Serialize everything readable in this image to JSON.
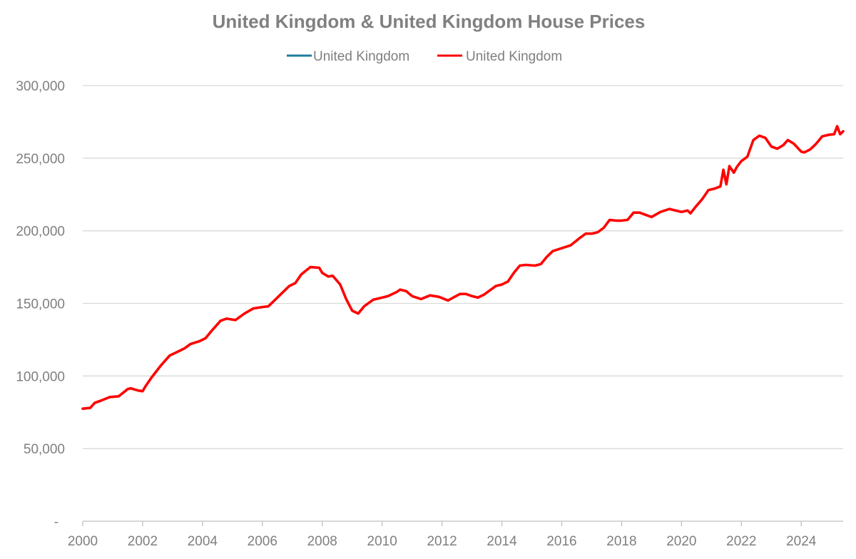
{
  "chart_data": {
    "type": "line",
    "title": "United Kingdom & United Kingdom House Prices",
    "xlabel": "",
    "ylabel": "",
    "xlim": [
      2000,
      2025.4
    ],
    "ylim": [
      0,
      300000
    ],
    "y_ticks": [
      0,
      50000,
      100000,
      150000,
      200000,
      250000,
      300000
    ],
    "y_tick_labels": [
      "-",
      "50,000",
      "100,000",
      "150,000",
      "200,000",
      "250,000",
      "300,000"
    ],
    "x_ticks": [
      2000,
      2002,
      2004,
      2006,
      2008,
      2010,
      2012,
      2014,
      2016,
      2018,
      2020,
      2022,
      2024
    ],
    "x_tick_labels": [
      "2000",
      "2002",
      "2004",
      "2006",
      "2008",
      "2010",
      "2012",
      "2014",
      "2016",
      "2018",
      "2020",
      "2022",
      "2024"
    ],
    "grid": "horizontal",
    "legend": "top-center",
    "series": [
      {
        "name": "United Kingdom",
        "color": "#1f7b9e",
        "x": [],
        "values": []
      },
      {
        "name": "United Kingdom",
        "color": "#ff0000",
        "x": [
          2000.0,
          2000.25,
          2000.4,
          2000.6,
          2000.9,
          2001.2,
          2001.5,
          2001.6,
          2001.85,
          2002.0,
          2002.1,
          2002.3,
          2002.6,
          2002.9,
          2003.1,
          2003.4,
          2003.6,
          2003.9,
          2004.1,
          2004.3,
          2004.6,
          2004.8,
          2005.1,
          2005.4,
          2005.7,
          2006.0,
          2006.2,
          2006.5,
          2006.7,
          2006.9,
          2007.1,
          2007.3,
          2007.6,
          2007.9,
          2008.0,
          2008.2,
          2008.35,
          2008.6,
          2008.8,
          2009.0,
          2009.2,
          2009.4,
          2009.7,
          2010.0,
          2010.2,
          2010.5,
          2010.6,
          2010.8,
          2011.0,
          2011.3,
          2011.6,
          2011.9,
          2012.2,
          2012.6,
          2012.8,
          2013.0,
          2013.2,
          2013.4,
          2013.6,
          2013.8,
          2014.0,
          2014.2,
          2014.4,
          2014.6,
          2014.8,
          2015.1,
          2015.3,
          2015.5,
          2015.7,
          2016.0,
          2016.3,
          2016.6,
          2016.8,
          2017.0,
          2017.2,
          2017.4,
          2017.6,
          2017.8,
          2018.0,
          2018.2,
          2018.4,
          2018.6,
          2018.8,
          2019.0,
          2019.3,
          2019.6,
          2019.8,
          2020.0,
          2020.2,
          2020.3,
          2020.45,
          2020.7,
          2020.9,
          2021.1,
          2021.3,
          2021.4,
          2021.5,
          2021.6,
          2021.75,
          2021.85,
          2022.0,
          2022.2,
          2022.4,
          2022.6,
          2022.8,
          2023.0,
          2023.2,
          2023.4,
          2023.55,
          2023.75,
          2024.0,
          2024.1,
          2024.3,
          2024.5,
          2024.7,
          2024.9,
          2025.1,
          2025.2,
          2025.3,
          2025.4
        ],
        "values": [
          77500,
          78000,
          81500,
          83000,
          85500,
          86000,
          91000,
          91500,
          90000,
          89500,
          93000,
          99000,
          107000,
          114000,
          116000,
          119000,
          122000,
          124000,
          126000,
          131000,
          138000,
          139500,
          138500,
          143000,
          146500,
          147500,
          148000,
          154000,
          158000,
          162000,
          164000,
          170000,
          175000,
          174500,
          171000,
          168500,
          169000,
          163000,
          153000,
          145000,
          143000,
          148000,
          152500,
          154000,
          155000,
          158000,
          159500,
          158500,
          155000,
          153000,
          155500,
          154500,
          152000,
          156500,
          156500,
          155000,
          154000,
          156000,
          159000,
          162000,
          163000,
          165000,
          171000,
          176000,
          176500,
          176000,
          177000,
          182000,
          186000,
          188000,
          190000,
          195000,
          198000,
          198000,
          199000,
          202000,
          207500,
          207000,
          207000,
          207500,
          212500,
          212500,
          211000,
          209500,
          213000,
          215000,
          214000,
          213000,
          214000,
          212000,
          216000,
          222000,
          228000,
          229000,
          230500,
          242000,
          232000,
          244500,
          240000,
          244000,
          248000,
          251000,
          262500,
          265500,
          264000,
          258000,
          256500,
          259000,
          262500,
          260000,
          254500,
          254000,
          256000,
          260000,
          265000,
          266000,
          266500,
          272000,
          266500,
          268500
        ]
      }
    ]
  }
}
